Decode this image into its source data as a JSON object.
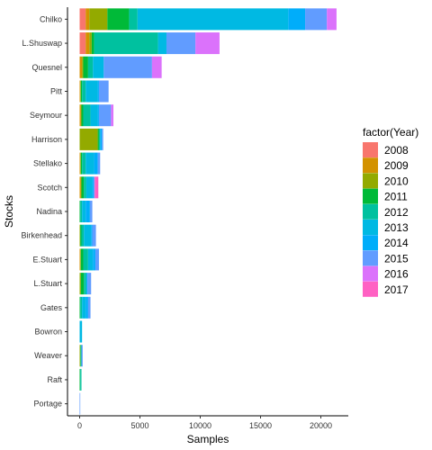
{
  "chart_data": {
    "type": "bar",
    "orientation": "horizontal",
    "stacked": true,
    "title": "",
    "xlabel": "Samples",
    "ylabel": "Stocks",
    "xlim": [
      0,
      21000
    ],
    "x_ticks": [
      0,
      5000,
      10000,
      15000,
      20000
    ],
    "grid": false,
    "legend_position": "right",
    "legend_title": "factor(Year)",
    "categories": [
      "Chilko",
      "L.Shuswap",
      "Quesnel",
      "Pitt",
      "Seymour",
      "Harrison",
      "Stellako",
      "Scotch",
      "Nadina",
      "Birkenhead",
      "E.Stuart",
      "L.Stuart",
      "Gates",
      "Bowron",
      "Weaver",
      "Raft",
      "Portage"
    ],
    "series": [
      {
        "name": "2008",
        "color": "#F8766D",
        "values": [
          500,
          500,
          0,
          0,
          0,
          0,
          0,
          0,
          0,
          0,
          0,
          0,
          0,
          0,
          0,
          0,
          0
        ]
      },
      {
        "name": "2009",
        "color": "#D39200",
        "values": [
          300,
          300,
          200,
          50,
          100,
          0,
          50,
          100,
          0,
          0,
          50,
          0,
          0,
          0,
          0,
          0,
          0
        ]
      },
      {
        "name": "2010",
        "color": "#93AA00",
        "values": [
          1500,
          200,
          100,
          50,
          50,
          1500,
          50,
          50,
          0,
          50,
          50,
          100,
          0,
          0,
          50,
          0,
          0
        ]
      },
      {
        "name": "2011",
        "color": "#00BA38",
        "values": [
          1800,
          200,
          400,
          100,
          150,
          100,
          100,
          200,
          50,
          100,
          200,
          250,
          50,
          0,
          50,
          50,
          0
        ]
      },
      {
        "name": "2012",
        "color": "#00C19F",
        "values": [
          700,
          5300,
          400,
          300,
          600,
          100,
          300,
          200,
          150,
          200,
          400,
          200,
          150,
          0,
          50,
          100,
          0
        ]
      },
      {
        "name": "2013",
        "color": "#00B9E3",
        "values": [
          12500,
          700,
          900,
          1000,
          600,
          0,
          700,
          500,
          300,
          600,
          400,
          0,
          300,
          200,
          0,
          0,
          0
        ]
      },
      {
        "name": "2014",
        "color": "#00ADFA",
        "values": [
          1400,
          0,
          0,
          100,
          100,
          150,
          300,
          100,
          350,
          100,
          200,
          100,
          200,
          0,
          0,
          0,
          0
        ]
      },
      {
        "name": "2015",
        "color": "#619CFF",
        "values": [
          1800,
          2400,
          4000,
          800,
          1000,
          100,
          200,
          100,
          200,
          300,
          300,
          300,
          200,
          0,
          100,
          0,
          50
        ]
      },
      {
        "name": "2016",
        "color": "#DB72FB",
        "values": [
          800,
          2000,
          800,
          0,
          200,
          0,
          0,
          0,
          0,
          0,
          0,
          0,
          0,
          0,
          0,
          0,
          0
        ]
      },
      {
        "name": "2017",
        "color": "#FF61C3",
        "values": [
          0,
          0,
          0,
          0,
          0,
          0,
          0,
          300,
          0,
          0,
          0,
          0,
          0,
          0,
          0,
          0,
          0
        ]
      }
    ]
  }
}
